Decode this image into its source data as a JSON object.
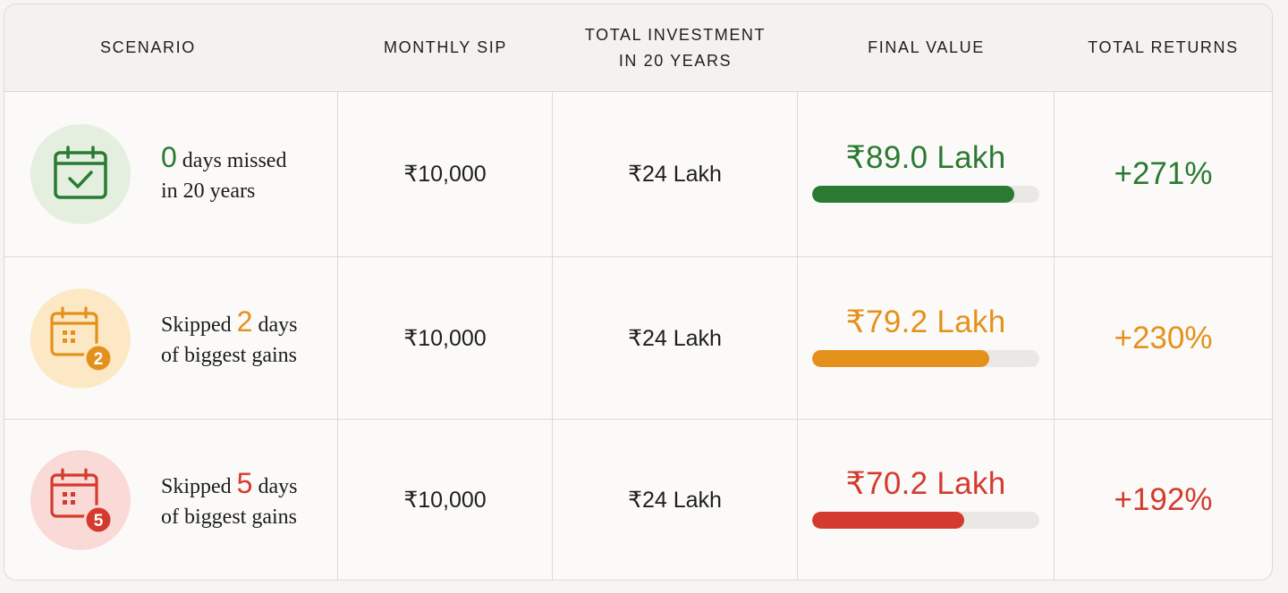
{
  "colors": {
    "green": "#2a7a32",
    "orange": "#e4911c",
    "red": "#d43a2e",
    "green_bg": "#e4efdf",
    "orange_bg": "#fce8c4",
    "red_bg": "#f9dad6"
  },
  "headers": {
    "scenario": "SCENARIO",
    "monthly_sip": "MONTHLY SIP",
    "total_investment_line1": "TOTAL INVESTMENT",
    "total_investment_line2": "IN 20 YEARS",
    "final_value": "FINAL VALUE",
    "total_returns": "TOTAL RETURNS"
  },
  "rows": [
    {
      "icon": "calendar-check-icon",
      "pre": "",
      "highlight": "0",
      "post": "days missed",
      "line2": "in 20 years",
      "monthly_sip": "₹10,000",
      "total_investment": "₹24 Lakh",
      "final_value": "₹89.0 Lakh",
      "bar_fraction": 0.89,
      "total_returns": "+271%",
      "color": "#2a7a32"
    },
    {
      "icon": "calendar-badge-2-icon",
      "pre": "Skipped",
      "highlight": "2",
      "post": "days",
      "line2": "of biggest gains",
      "badge": "2",
      "monthly_sip": "₹10,000",
      "total_investment": "₹24 Lakh",
      "final_value": "₹79.2 Lakh",
      "bar_fraction": 0.78,
      "total_returns": "+230%",
      "color": "#e4911c"
    },
    {
      "icon": "calendar-badge-5-icon",
      "pre": "Skipped",
      "highlight": "5",
      "post": "days",
      "line2": "of biggest gains",
      "badge": "5",
      "monthly_sip": "₹10,000",
      "total_investment": "₹24 Lakh",
      "final_value": "₹70.2 Lakh",
      "bar_fraction": 0.67,
      "total_returns": "+192%",
      "color": "#d43a2e"
    }
  ]
}
